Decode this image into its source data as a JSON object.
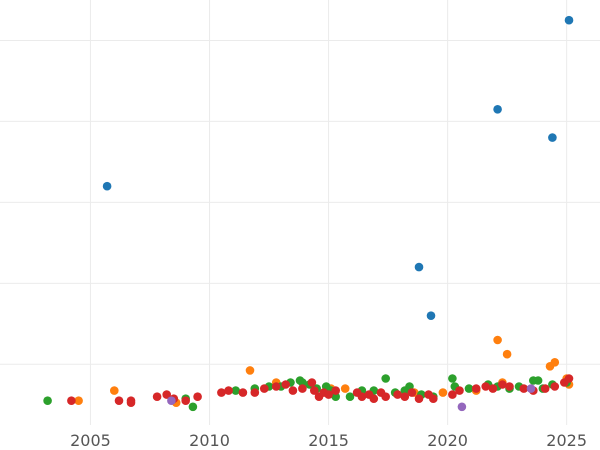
{
  "chart_data": {
    "type": "scatter",
    "title": "",
    "xlabel": "",
    "ylabel": "",
    "xlim": [
      2001.2,
      2026.4
    ],
    "ylim": [
      0,
      10.5
    ],
    "grid": true,
    "legend": "none",
    "x_ticks": [
      2005,
      2010,
      2015,
      2020,
      2025
    ],
    "x_tick_labels": [
      "2005",
      "2010",
      "2015",
      "2020",
      "2025"
    ],
    "y_ticks": [
      1.5,
      3.5,
      5.5,
      7.5,
      9.5
    ],
    "y_tick_labels": [],
    "series": [
      {
        "color": "#1f77b4",
        "points": [
          [
            2005.7,
            5.9
          ],
          [
            2018.8,
            3.9
          ],
          [
            2019.3,
            2.7
          ],
          [
            2022.1,
            7.8
          ],
          [
            2024.4,
            7.1
          ],
          [
            2025.1,
            10.0
          ]
        ]
      },
      {
        "color": "#ff7f0e",
        "points": [
          [
            2004.5,
            0.6
          ],
          [
            2006.0,
            0.85
          ],
          [
            2008.6,
            0.55
          ],
          [
            2011.7,
            1.35
          ],
          [
            2012.8,
            1.05
          ],
          [
            2015.1,
            0.9
          ],
          [
            2015.7,
            0.9
          ],
          [
            2018.6,
            0.8
          ],
          [
            2019.8,
            0.8
          ],
          [
            2021.2,
            0.85
          ],
          [
            2022.1,
            2.1
          ],
          [
            2022.3,
            1.05
          ],
          [
            2022.5,
            1.75
          ],
          [
            2024.3,
            1.45
          ],
          [
            2024.5,
            1.55
          ],
          [
            2025.0,
            1.15
          ],
          [
            2025.1,
            1.0
          ]
        ]
      },
      {
        "color": "#2ca02c",
        "points": [
          [
            2003.2,
            0.6
          ],
          [
            2009.0,
            0.65
          ],
          [
            2009.3,
            0.45
          ],
          [
            2011.1,
            0.85
          ],
          [
            2011.9,
            0.9
          ],
          [
            2012.5,
            0.95
          ],
          [
            2013.0,
            0.95
          ],
          [
            2013.4,
            1.05
          ],
          [
            2013.8,
            1.1
          ],
          [
            2013.9,
            1.05
          ],
          [
            2014.2,
            1.0
          ],
          [
            2014.5,
            0.9
          ],
          [
            2014.9,
            0.95
          ],
          [
            2015.1,
            0.85
          ],
          [
            2015.3,
            0.7
          ],
          [
            2015.9,
            0.7
          ],
          [
            2016.4,
            0.85
          ],
          [
            2016.9,
            0.85
          ],
          [
            2017.4,
            1.15
          ],
          [
            2017.8,
            0.8
          ],
          [
            2018.2,
            0.85
          ],
          [
            2018.4,
            0.95
          ],
          [
            2018.9,
            0.75
          ],
          [
            2019.4,
            0.7
          ],
          [
            2020.2,
            1.15
          ],
          [
            2020.3,
            0.95
          ],
          [
            2020.9,
            0.9
          ],
          [
            2021.7,
            1.0
          ],
          [
            2022.1,
            0.95
          ],
          [
            2022.6,
            0.9
          ],
          [
            2023.0,
            0.95
          ],
          [
            2023.6,
            1.1
          ],
          [
            2023.8,
            1.1
          ],
          [
            2024.0,
            0.9
          ],
          [
            2024.4,
            1.0
          ],
          [
            2025.0,
            1.05
          ]
        ]
      },
      {
        "color": "#d62728",
        "points": [
          [
            2004.2,
            0.6
          ],
          [
            2006.2,
            0.6
          ],
          [
            2006.7,
            0.55
          ],
          [
            2006.7,
            0.6
          ],
          [
            2007.8,
            0.7
          ],
          [
            2008.2,
            0.75
          ],
          [
            2008.5,
            0.65
          ],
          [
            2009.0,
            0.6
          ],
          [
            2009.5,
            0.7
          ],
          [
            2010.5,
            0.8
          ],
          [
            2010.8,
            0.85
          ],
          [
            2011.4,
            0.8
          ],
          [
            2011.9,
            0.8
          ],
          [
            2012.3,
            0.9
          ],
          [
            2012.8,
            0.95
          ],
          [
            2013.2,
            1.0
          ],
          [
            2013.5,
            0.85
          ],
          [
            2013.9,
            0.9
          ],
          [
            2014.3,
            1.05
          ],
          [
            2014.4,
            0.85
          ],
          [
            2014.6,
            0.7
          ],
          [
            2014.8,
            0.8
          ],
          [
            2015.0,
            0.75
          ],
          [
            2015.3,
            0.85
          ],
          [
            2016.2,
            0.8
          ],
          [
            2016.4,
            0.7
          ],
          [
            2016.7,
            0.75
          ],
          [
            2016.9,
            0.65
          ],
          [
            2017.2,
            0.8
          ],
          [
            2017.4,
            0.7
          ],
          [
            2017.9,
            0.75
          ],
          [
            2018.2,
            0.7
          ],
          [
            2018.5,
            0.8
          ],
          [
            2018.8,
            0.65
          ],
          [
            2019.2,
            0.75
          ],
          [
            2019.4,
            0.65
          ],
          [
            2020.2,
            0.75
          ],
          [
            2020.5,
            0.85
          ],
          [
            2021.2,
            0.9
          ],
          [
            2021.6,
            0.95
          ],
          [
            2021.9,
            0.9
          ],
          [
            2022.3,
            1.0
          ],
          [
            2022.6,
            0.95
          ],
          [
            2023.2,
            0.9
          ],
          [
            2023.6,
            0.85
          ],
          [
            2024.1,
            0.9
          ],
          [
            2024.5,
            0.95
          ],
          [
            2024.9,
            1.05
          ],
          [
            2025.1,
            1.15
          ]
        ]
      },
      {
        "color": "#9467bd",
        "points": [
          [
            2008.4,
            0.6
          ],
          [
            2020.6,
            0.45
          ],
          [
            2023.5,
            0.9
          ]
        ]
      }
    ]
  }
}
